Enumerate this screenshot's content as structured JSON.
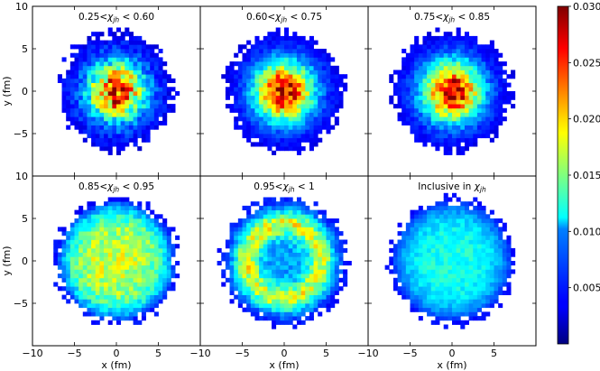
{
  "chart_data": {
    "type": "heatmap",
    "layout": "2x3 grid of panels sharing axes, one shared colorbar",
    "xlabel": "x (fm)",
    "ylabel": "y (fm)",
    "xlim": [
      -10,
      10
    ],
    "ylim": [
      -10,
      10
    ],
    "x_ticks": [
      "−10",
      "−5",
      "0",
      "5"
    ],
    "y_ticks": [
      "10",
      "5",
      "0",
      "−5"
    ],
    "colormap": "jet",
    "colorbar": {
      "range": [
        0,
        0.03
      ],
      "ticks": [
        "0.030",
        "0.025",
        "0.020",
        "0.015",
        "0.010",
        "0.005"
      ]
    },
    "bin_size_fm": 0.5,
    "panels": [
      {
        "label": "0.25<χjh < 0.60",
        "label_parts": [
          "0.25<",
          "χ",
          "jh",
          " < 0.60"
        ],
        "radius_fm": 6.8,
        "profile": "central",
        "peak": 0.026,
        "edge": 0.003,
        "noise": 0.32
      },
      {
        "label": "0.60<χjh < 0.75",
        "label_parts": [
          "0.60<",
          "χ",
          "jh",
          " < 0.75"
        ],
        "radius_fm": 6.9,
        "profile": "central",
        "peak": 0.028,
        "edge": 0.003,
        "noise": 0.22
      },
      {
        "label": "0.75<χjh < 0.85",
        "label_parts": [
          "0.75<",
          "χ",
          "jh",
          " < 0.85"
        ],
        "radius_fm": 7.0,
        "profile": "central",
        "peak": 0.028,
        "edge": 0.003,
        "noise": 0.22
      },
      {
        "label": "0.85<χjh < 0.95",
        "label_parts": [
          "0.85<",
          "χ",
          "jh",
          " < 0.95"
        ],
        "radius_fm": 7.2,
        "profile": "flat",
        "peak": 0.017,
        "edge": 0.004,
        "noise": 0.18
      },
      {
        "label": "0.95<χjh < 1",
        "label_parts": [
          "0.95<",
          "χ",
          "jh",
          " < 1"
        ],
        "radius_fm": 7.4,
        "profile": "ring",
        "peak": 0.017,
        "edge": 0.004,
        "noise": 0.2
      },
      {
        "label": "Inclusive in χjh",
        "label_parts": [
          "Inclusive in ",
          "χ",
          "jh",
          ""
        ],
        "radius_fm": 7.3,
        "profile": "flat",
        "peak": 0.012,
        "edge": 0.004,
        "noise": 0.12
      }
    ]
  }
}
